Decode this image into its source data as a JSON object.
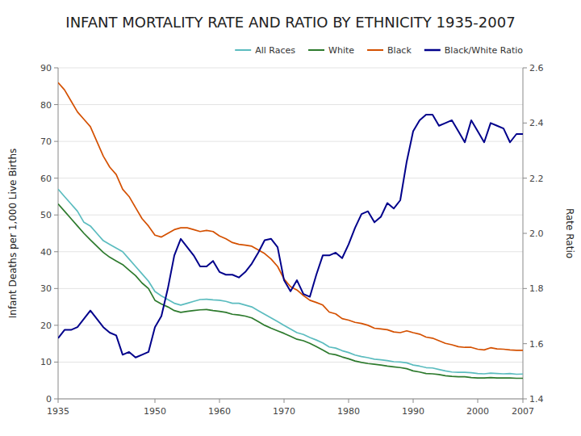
{
  "chart_data": {
    "type": "line",
    "title": "INFANT MORTALITY RATE AND RATIO BY ETHNICITY 1935-2007",
    "ylabel": "Infant Deaths per 1,000 Live Births",
    "y2label": "Rate Ratio",
    "x": [
      1935,
      1936,
      1937,
      1938,
      1939,
      1940,
      1941,
      1942,
      1943,
      1944,
      1945,
      1946,
      1947,
      1948,
      1949,
      1950,
      1951,
      1952,
      1953,
      1954,
      1955,
      1956,
      1957,
      1958,
      1959,
      1960,
      1961,
      1962,
      1963,
      1964,
      1965,
      1966,
      1967,
      1968,
      1969,
      1970,
      1971,
      1972,
      1973,
      1974,
      1975,
      1976,
      1977,
      1978,
      1979,
      1980,
      1981,
      1982,
      1983,
      1984,
      1985,
      1986,
      1987,
      1988,
      1989,
      1990,
      1991,
      1992,
      1993,
      1994,
      1995,
      1996,
      1997,
      1998,
      1999,
      2000,
      2001,
      2002,
      2003,
      2004,
      2005,
      2006,
      2007
    ],
    "xlim": [
      1935,
      2007
    ],
    "xticks": [
      1935,
      1950,
      1960,
      1970,
      1980,
      1990,
      2000,
      2007
    ],
    "ylim": [
      0,
      90
    ],
    "yticks": [
      0,
      10,
      20,
      30,
      40,
      50,
      60,
      70,
      80,
      90
    ],
    "y2lim": [
      1.4,
      2.6
    ],
    "y2ticks": [
      1.4,
      1.6,
      1.8,
      {
        "value": 2.0,
        "label": "2.0"
      },
      2.2,
      2.4,
      2.6
    ],
    "grid": true,
    "legend": "upper right",
    "series": [
      {
        "name": "All Races",
        "color": "#5bbcbf",
        "values": [
          57,
          55,
          53,
          51,
          48,
          47,
          45,
          43,
          42,
          41,
          40,
          38,
          36,
          34,
          32,
          29.2,
          28,
          27,
          26,
          25.5,
          26,
          26.5,
          27,
          27.1,
          26.9,
          26.8,
          26.5,
          26,
          26,
          25.5,
          25,
          24,
          23,
          22,
          21,
          20,
          19,
          18,
          17.5,
          16.7,
          16,
          15.2,
          14.1,
          13.8,
          13.1,
          12.6,
          11.9,
          11.5,
          11.2,
          10.8,
          10.6,
          10.4,
          10.1,
          10.0,
          9.8,
          9.2,
          8.9,
          8.5,
          8.4,
          8.0,
          7.6,
          7.3,
          7.2,
          7.2,
          7.1,
          6.9,
          6.8,
          7.0,
          6.9,
          6.8,
          6.9,
          6.7,
          6.75
        ]
      },
      {
        "name": "White",
        "color": "#2d7a2d",
        "values": [
          53,
          51,
          49,
          47,
          45,
          43.2,
          41.5,
          39.8,
          38.5,
          37.5,
          36.5,
          35,
          33.5,
          31.5,
          30,
          26.8,
          25.8,
          25,
          24,
          23.5,
          23.8,
          24,
          24.2,
          24.3,
          24,
          23.8,
          23.5,
          23,
          22.8,
          22.5,
          22,
          21,
          20,
          19.2,
          18.5,
          17.8,
          17,
          16.2,
          15.8,
          15.1,
          14.2,
          13.3,
          12.3,
          12.0,
          11.4,
          10.9,
          10.3,
          9.9,
          9.6,
          9.4,
          9.2,
          8.9,
          8.7,
          8.5,
          8.2,
          7.6,
          7.3,
          6.9,
          6.8,
          6.6,
          6.3,
          6.1,
          6.0,
          6.0,
          5.8,
          5.7,
          5.7,
          5.8,
          5.7,
          5.66,
          5.7,
          5.6,
          5.6
        ]
      },
      {
        "name": "Black",
        "color": "#d45000",
        "values": [
          86,
          84,
          81,
          78,
          76,
          74,
          70,
          66,
          63,
          61,
          57,
          55,
          52,
          49,
          47,
          44.5,
          44,
          45,
          46,
          46.5,
          46.5,
          46,
          45.5,
          45.8,
          45.5,
          44.3,
          43.5,
          42.5,
          42,
          41.8,
          41.5,
          40.5,
          39.5,
          38,
          36,
          32.6,
          30.5,
          29.6,
          28.1,
          26.8,
          26.2,
          25.5,
          23.6,
          23.1,
          21.8,
          21.4,
          20.8,
          20.5,
          20,
          19.2,
          19.0,
          18.8,
          18.2,
          18.0,
          18.5,
          18.0,
          17.6,
          16.8,
          16.5,
          15.8,
          15.1,
          14.7,
          14.2,
          14.0,
          14.0,
          13.5,
          13.3,
          13.9,
          13.6,
          13.5,
          13.3,
          13.2,
          13.2
        ]
      },
      {
        "name": "Black/White Ratio",
        "color": "#00008b",
        "axis": "y2",
        "values": [
          1.62,
          1.65,
          1.65,
          1.66,
          1.69,
          1.72,
          1.69,
          1.66,
          1.64,
          1.63,
          1.56,
          1.57,
          1.55,
          1.56,
          1.57,
          1.66,
          1.7,
          1.8,
          1.92,
          1.98,
          1.95,
          1.92,
          1.88,
          1.88,
          1.9,
          1.86,
          1.85,
          1.85,
          1.84,
          1.86,
          1.89,
          1.93,
          1.975,
          1.98,
          1.95,
          1.83,
          1.79,
          1.83,
          1.78,
          1.77,
          1.85,
          1.92,
          1.92,
          1.93,
          1.91,
          1.96,
          2.02,
          2.07,
          2.08,
          2.04,
          2.06,
          2.11,
          2.09,
          2.12,
          2.26,
          2.37,
          2.41,
          2.43,
          2.43,
          2.39,
          2.4,
          2.41,
          2.37,
          2.33,
          2.41,
          2.37,
          2.33,
          2.4,
          2.39,
          2.38,
          2.33,
          2.36,
          2.36
        ]
      }
    ]
  }
}
